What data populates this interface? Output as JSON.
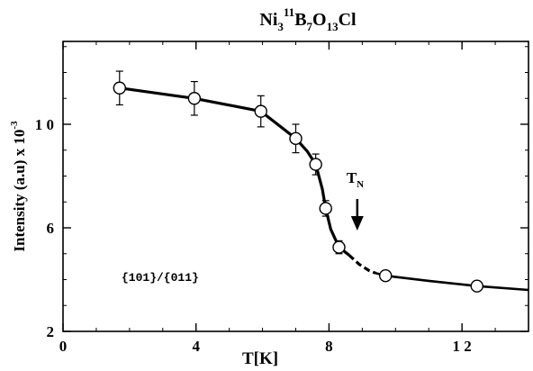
{
  "chart_data": {
    "type": "line",
    "title": {
      "base": "Ni",
      "sub1": "3",
      "sup": "11",
      "b": "B",
      "sub2": "7",
      "o": "O",
      "sub3": "13",
      "tail": "Cl"
    },
    "xlabel": "T[K]",
    "ylabel": {
      "text": "Intensity (a.u) x 10",
      "exp": "-3"
    },
    "xlim": [
      0,
      14
    ],
    "ylim": [
      2,
      13.2
    ],
    "xticks": [
      {
        "value": 0,
        "label": "0"
      },
      {
        "value": 4,
        "label": "4"
      },
      {
        "value": 8,
        "label": "8"
      },
      {
        "value": 12,
        "label": "1 2"
      }
    ],
    "yticks": [
      {
        "value": 2,
        "label": "2"
      },
      {
        "value": 6,
        "label": "6"
      },
      {
        "value": 10,
        "label": "1 0"
      }
    ],
    "x_minor_step": 1,
    "y_minor_step": 1,
    "series": [
      {
        "x": [
          1.7,
          3.95,
          5.95,
          7.0,
          7.6,
          7.9,
          8.3,
          9.7,
          12.45
        ],
        "y": [
          11.4,
          11.0,
          10.5,
          9.45,
          8.45,
          6.75,
          5.25,
          4.15,
          3.75
        ],
        "err": [
          0.65,
          0.65,
          0.6,
          0.55,
          0.4,
          0.3,
          0.25,
          0.1,
          0.1
        ]
      }
    ],
    "fit_solid_1": [
      [
        1.7,
        11.4
      ],
      [
        3.95,
        11.0
      ],
      [
        5.95,
        10.5
      ],
      [
        6.5,
        9.95
      ],
      [
        7.0,
        9.45
      ],
      [
        7.35,
        8.95
      ],
      [
        7.6,
        8.45
      ],
      [
        7.8,
        7.5
      ],
      [
        7.9,
        6.75
      ],
      [
        8.05,
        5.95
      ],
      [
        8.3,
        5.25
      ],
      [
        8.6,
        4.95
      ]
    ],
    "fit_dashed": [
      [
        8.6,
        4.95
      ],
      [
        8.9,
        4.6
      ],
      [
        9.2,
        4.35
      ],
      [
        9.4,
        4.25
      ]
    ],
    "fit_solid_2": [
      [
        9.4,
        4.25
      ],
      [
        9.7,
        4.15
      ],
      [
        11.0,
        3.95
      ],
      [
        12.45,
        3.75
      ],
      [
        14.0,
        3.6
      ]
    ],
    "annotations": {
      "tn": {
        "main": "T",
        "sub": "N",
        "x": 8.85
      },
      "hkl": "{101}/{011}"
    }
  }
}
